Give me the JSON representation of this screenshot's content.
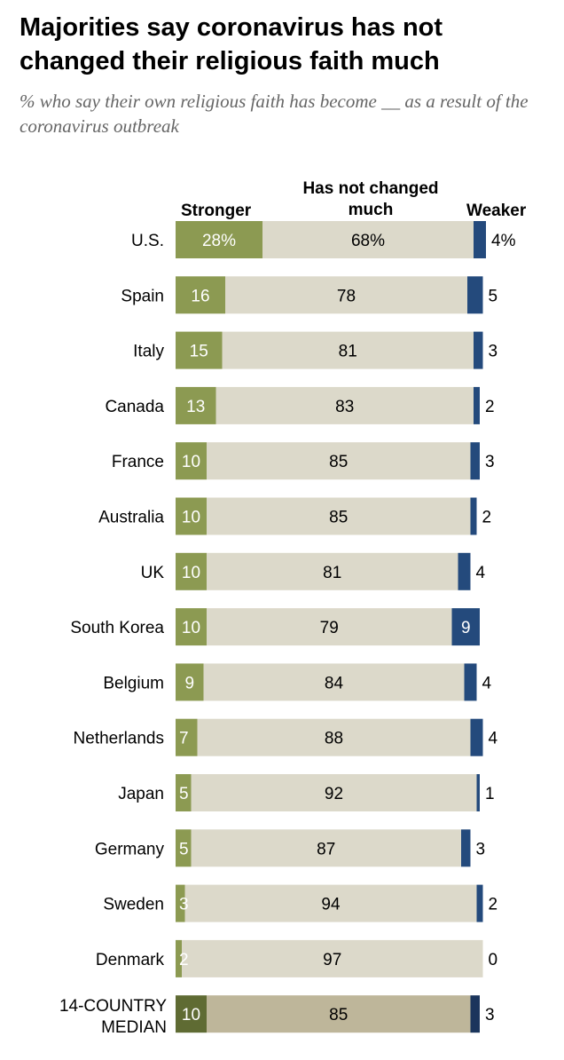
{
  "title": "Majorities say coronavirus has not changed their religious faith much",
  "subtitle": "% who say their own religious faith has become __ as a result of the coronavirus outbreak",
  "colors": {
    "stronger": "#8c9a52",
    "stronger_median": "#5f6b33",
    "not_changed": "#dcd9ca",
    "not_changed_median": "#beb69a",
    "weaker": "#244a7c",
    "weaker_median": "#1b355c"
  },
  "chart_data": {
    "type": "bar",
    "orientation": "horizontal",
    "stacked": true,
    "series_headers": {
      "stronger": "Stronger",
      "not_changed": "Has not changed much",
      "weaker": "Weaker"
    },
    "categories": [
      "U.S.",
      "Spain",
      "Italy",
      "Canada",
      "France",
      "Australia",
      "UK",
      "South Korea",
      "Belgium",
      "Netherlands",
      "Japan",
      "Germany",
      "Sweden",
      "Denmark",
      "14-COUNTRY MEDIAN"
    ],
    "series": [
      {
        "name": "Stronger",
        "values": [
          28,
          16,
          15,
          13,
          10,
          10,
          10,
          10,
          9,
          7,
          5,
          5,
          3,
          2,
          10
        ]
      },
      {
        "name": "Has not changed much",
        "values": [
          68,
          78,
          81,
          83,
          85,
          85,
          81,
          79,
          84,
          88,
          92,
          87,
          94,
          97,
          85
        ]
      },
      {
        "name": "Weaker",
        "values": [
          4,
          5,
          3,
          2,
          3,
          2,
          4,
          9,
          4,
          4,
          1,
          3,
          2,
          0,
          3
        ]
      }
    ],
    "value_labels": {
      "stronger": [
        "28%",
        "16",
        "15",
        "13",
        "10",
        "10",
        "10",
        "10",
        "9",
        "7",
        "5",
        "5",
        "3",
        "2",
        "10"
      ],
      "not_changed": [
        "68%",
        "78",
        "81",
        "83",
        "85",
        "85",
        "81",
        "79",
        "84",
        "88",
        "92",
        "87",
        "94",
        "97",
        "85"
      ],
      "weaker": [
        "4%",
        "5",
        "3",
        "2",
        "3",
        "2",
        "4",
        "9",
        "4",
        "4",
        "1",
        "3",
        "2",
        "0",
        "3"
      ]
    }
  }
}
